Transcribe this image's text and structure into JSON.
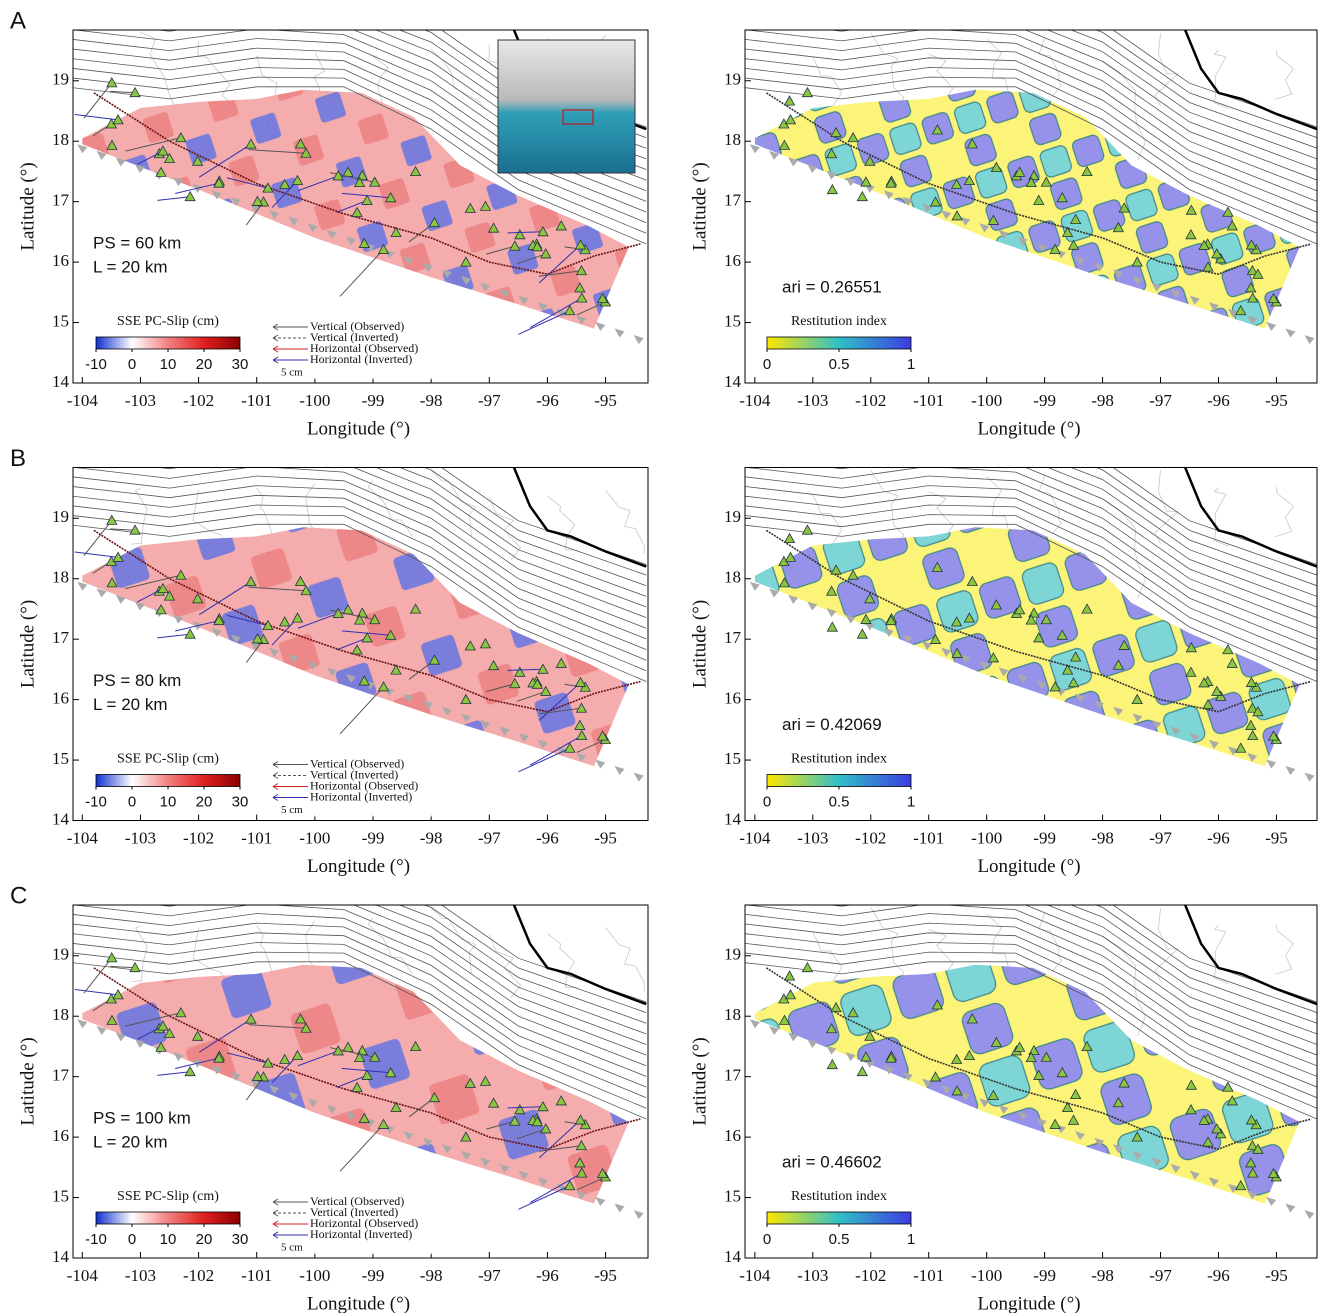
{
  "chart_data": [
    {
      "type": "slip-map",
      "panel_label": "A",
      "xlabel": "Longitude (°)",
      "ylabel": "Latitude (°)",
      "xlim": [
        -104.16,
        -94.27
      ],
      "ylim": [
        14,
        19.84
      ],
      "xticks": [
        -104,
        -103,
        -102,
        -101,
        -100,
        -99,
        -98,
        -97,
        -96,
        -95
      ],
      "yticks": [
        14,
        15,
        16,
        17,
        18,
        19
      ],
      "annotations": [
        "PS = 60 km",
        "L = 20 km"
      ],
      "colorbar": {
        "title": "SSE PC-Slip (cm)",
        "lim": [
          -10,
          30
        ],
        "ticks": [
          -10,
          0,
          10,
          20,
          30
        ],
        "colors": [
          "#1030d0",
          "#ffffff",
          "#f48080",
          "#e02020",
          "#8a0000"
        ]
      },
      "legend": [
        {
          "name": "Vertical (Observed)",
          "color": "#555555",
          "dash": false
        },
        {
          "name": "Vertical (Inverted)",
          "color": "#555555",
          "dash": true
        },
        {
          "name": "Horizontal (Observed)",
          "color": "#d02020",
          "dash": false
        },
        {
          "name": "Horizontal (Inverted)",
          "color": "#3030b0",
          "dash": false
        }
      ],
      "legend_scale": "5 cm"
    },
    {
      "type": "restitution-map",
      "xlabel": "Longitude (°)",
      "ylabel": "Latitude (°)",
      "xlim": [
        -104.17,
        -94.3
      ],
      "ylim": [
        14,
        19.84
      ],
      "xticks": [
        -104,
        -103,
        -102,
        -101,
        -100,
        -99,
        -98,
        -97,
        -96,
        -95
      ],
      "yticks": [
        14,
        15,
        16,
        17,
        18,
        19
      ],
      "annotations": [
        "ari = 0.26551"
      ],
      "colorbar": {
        "title": "Restitution index",
        "lim": [
          0,
          1
        ],
        "ticks": [
          0,
          0.5,
          1
        ],
        "colors": [
          "#ffe600",
          "#30c0c8",
          "#3c3ce0"
        ]
      }
    },
    {
      "type": "slip-map",
      "panel_label": "B",
      "xlabel": "Longitude (°)",
      "ylabel": "Latitude (°)",
      "xlim": [
        -104.16,
        -94.27
      ],
      "ylim": [
        14,
        19.84
      ],
      "xticks": [
        -104,
        -103,
        -102,
        -101,
        -100,
        -99,
        -98,
        -97,
        -96,
        -95
      ],
      "yticks": [
        14,
        15,
        16,
        17,
        18,
        19
      ],
      "annotations": [
        "PS = 80 km",
        "L = 20 km"
      ],
      "colorbar": {
        "title": "SSE PC-Slip (cm)",
        "lim": [
          -10,
          30
        ],
        "ticks": [
          -10,
          0,
          10,
          20,
          30
        ],
        "colors": [
          "#1030d0",
          "#ffffff",
          "#f48080",
          "#e02020",
          "#8a0000"
        ]
      },
      "legend": [
        {
          "name": "Vertical (Observed)",
          "color": "#555555",
          "dash": false
        },
        {
          "name": "Vertical (Inverted)",
          "color": "#555555",
          "dash": true
        },
        {
          "name": "Horizontal (Observed)",
          "color": "#d02020",
          "dash": false
        },
        {
          "name": "Horizontal (Inverted)",
          "color": "#3030b0",
          "dash": false
        }
      ],
      "legend_scale": "5 cm"
    },
    {
      "type": "restitution-map",
      "xlabel": "Longitude (°)",
      "ylabel": "Latitude (°)",
      "xlim": [
        -104.17,
        -94.3
      ],
      "ylim": [
        14,
        19.84
      ],
      "xticks": [
        -104,
        -103,
        -102,
        -101,
        -100,
        -99,
        -98,
        -97,
        -96,
        -95
      ],
      "yticks": [
        14,
        15,
        16,
        17,
        18,
        19
      ],
      "annotations": [
        "ari = 0.42069"
      ],
      "colorbar": {
        "title": "Restitution index",
        "lim": [
          0,
          1
        ],
        "ticks": [
          0,
          0.5,
          1
        ],
        "colors": [
          "#ffe600",
          "#30c0c8",
          "#3c3ce0"
        ]
      }
    },
    {
      "type": "slip-map",
      "panel_label": "C",
      "xlabel": "Longitude (°)",
      "ylabel": "Latitude (°)",
      "xlim": [
        -104.16,
        -94.27
      ],
      "ylim": [
        14,
        19.84
      ],
      "xticks": [
        -104,
        -103,
        -102,
        -101,
        -100,
        -99,
        -98,
        -97,
        -96,
        -95
      ],
      "yticks": [
        14,
        15,
        16,
        17,
        18,
        19
      ],
      "annotations": [
        "PS = 100 km",
        "L = 20 km"
      ],
      "colorbar": {
        "title": "SSE PC-Slip (cm)",
        "lim": [
          -10,
          30
        ],
        "ticks": [
          -10,
          0,
          10,
          20,
          30
        ],
        "colors": [
          "#1030d0",
          "#ffffff",
          "#f48080",
          "#e02020",
          "#8a0000"
        ]
      },
      "legend": [
        {
          "name": "Vertical (Observed)",
          "color": "#555555",
          "dash": false
        },
        {
          "name": "Vertical (Inverted)",
          "color": "#555555",
          "dash": true
        },
        {
          "name": "Horizontal (Observed)",
          "color": "#d02020",
          "dash": false
        },
        {
          "name": "Horizontal (Inverted)",
          "color": "#3030b0",
          "dash": false
        }
      ],
      "legend_scale": "5 cm"
    },
    {
      "type": "restitution-map",
      "xlabel": "Longitude (°)",
      "ylabel": "Latitude (°)",
      "xlim": [
        -104.17,
        -94.3
      ],
      "ylim": [
        14,
        19.84
      ],
      "xticks": [
        -104,
        -103,
        -102,
        -101,
        -100,
        -99,
        -98,
        -97,
        -96,
        -95
      ],
      "yticks": [
        14,
        15,
        16,
        17,
        18,
        19
      ],
      "annotations": [
        "ari = 0.46602"
      ],
      "colorbar": {
        "title": "Restitution index",
        "lim": [
          0,
          1
        ],
        "ticks": [
          0,
          0.5,
          1
        ],
        "colors": [
          "#ffe600",
          "#30c0c8",
          "#3c3ce0"
        ]
      }
    }
  ]
}
